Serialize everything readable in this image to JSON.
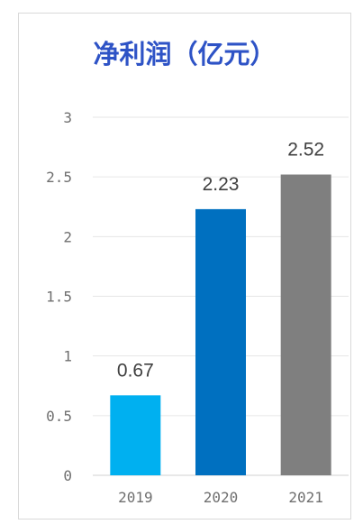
{
  "chart_data": {
    "type": "bar",
    "title": "净利润（亿元）",
    "categories": [
      "2019",
      "2020",
      "2021"
    ],
    "values": [
      0.67,
      2.23,
      2.52
    ],
    "data_labels": [
      "0.67",
      "2.23",
      "2.52"
    ],
    "ylim": [
      0,
      3
    ],
    "yticks": [
      "0",
      "0.5",
      "1",
      "1.5",
      "2",
      "2.5",
      "3"
    ],
    "ytick_values": [
      0,
      0.5,
      1,
      1.5,
      2,
      2.5,
      3
    ],
    "grid": true,
    "legend": "none",
    "colors": [
      "#00b0f0",
      "#0070c0",
      "#7f7f7f"
    ],
    "grid_color": "#e6e6e6",
    "axis_color": "#d9d9d9"
  }
}
